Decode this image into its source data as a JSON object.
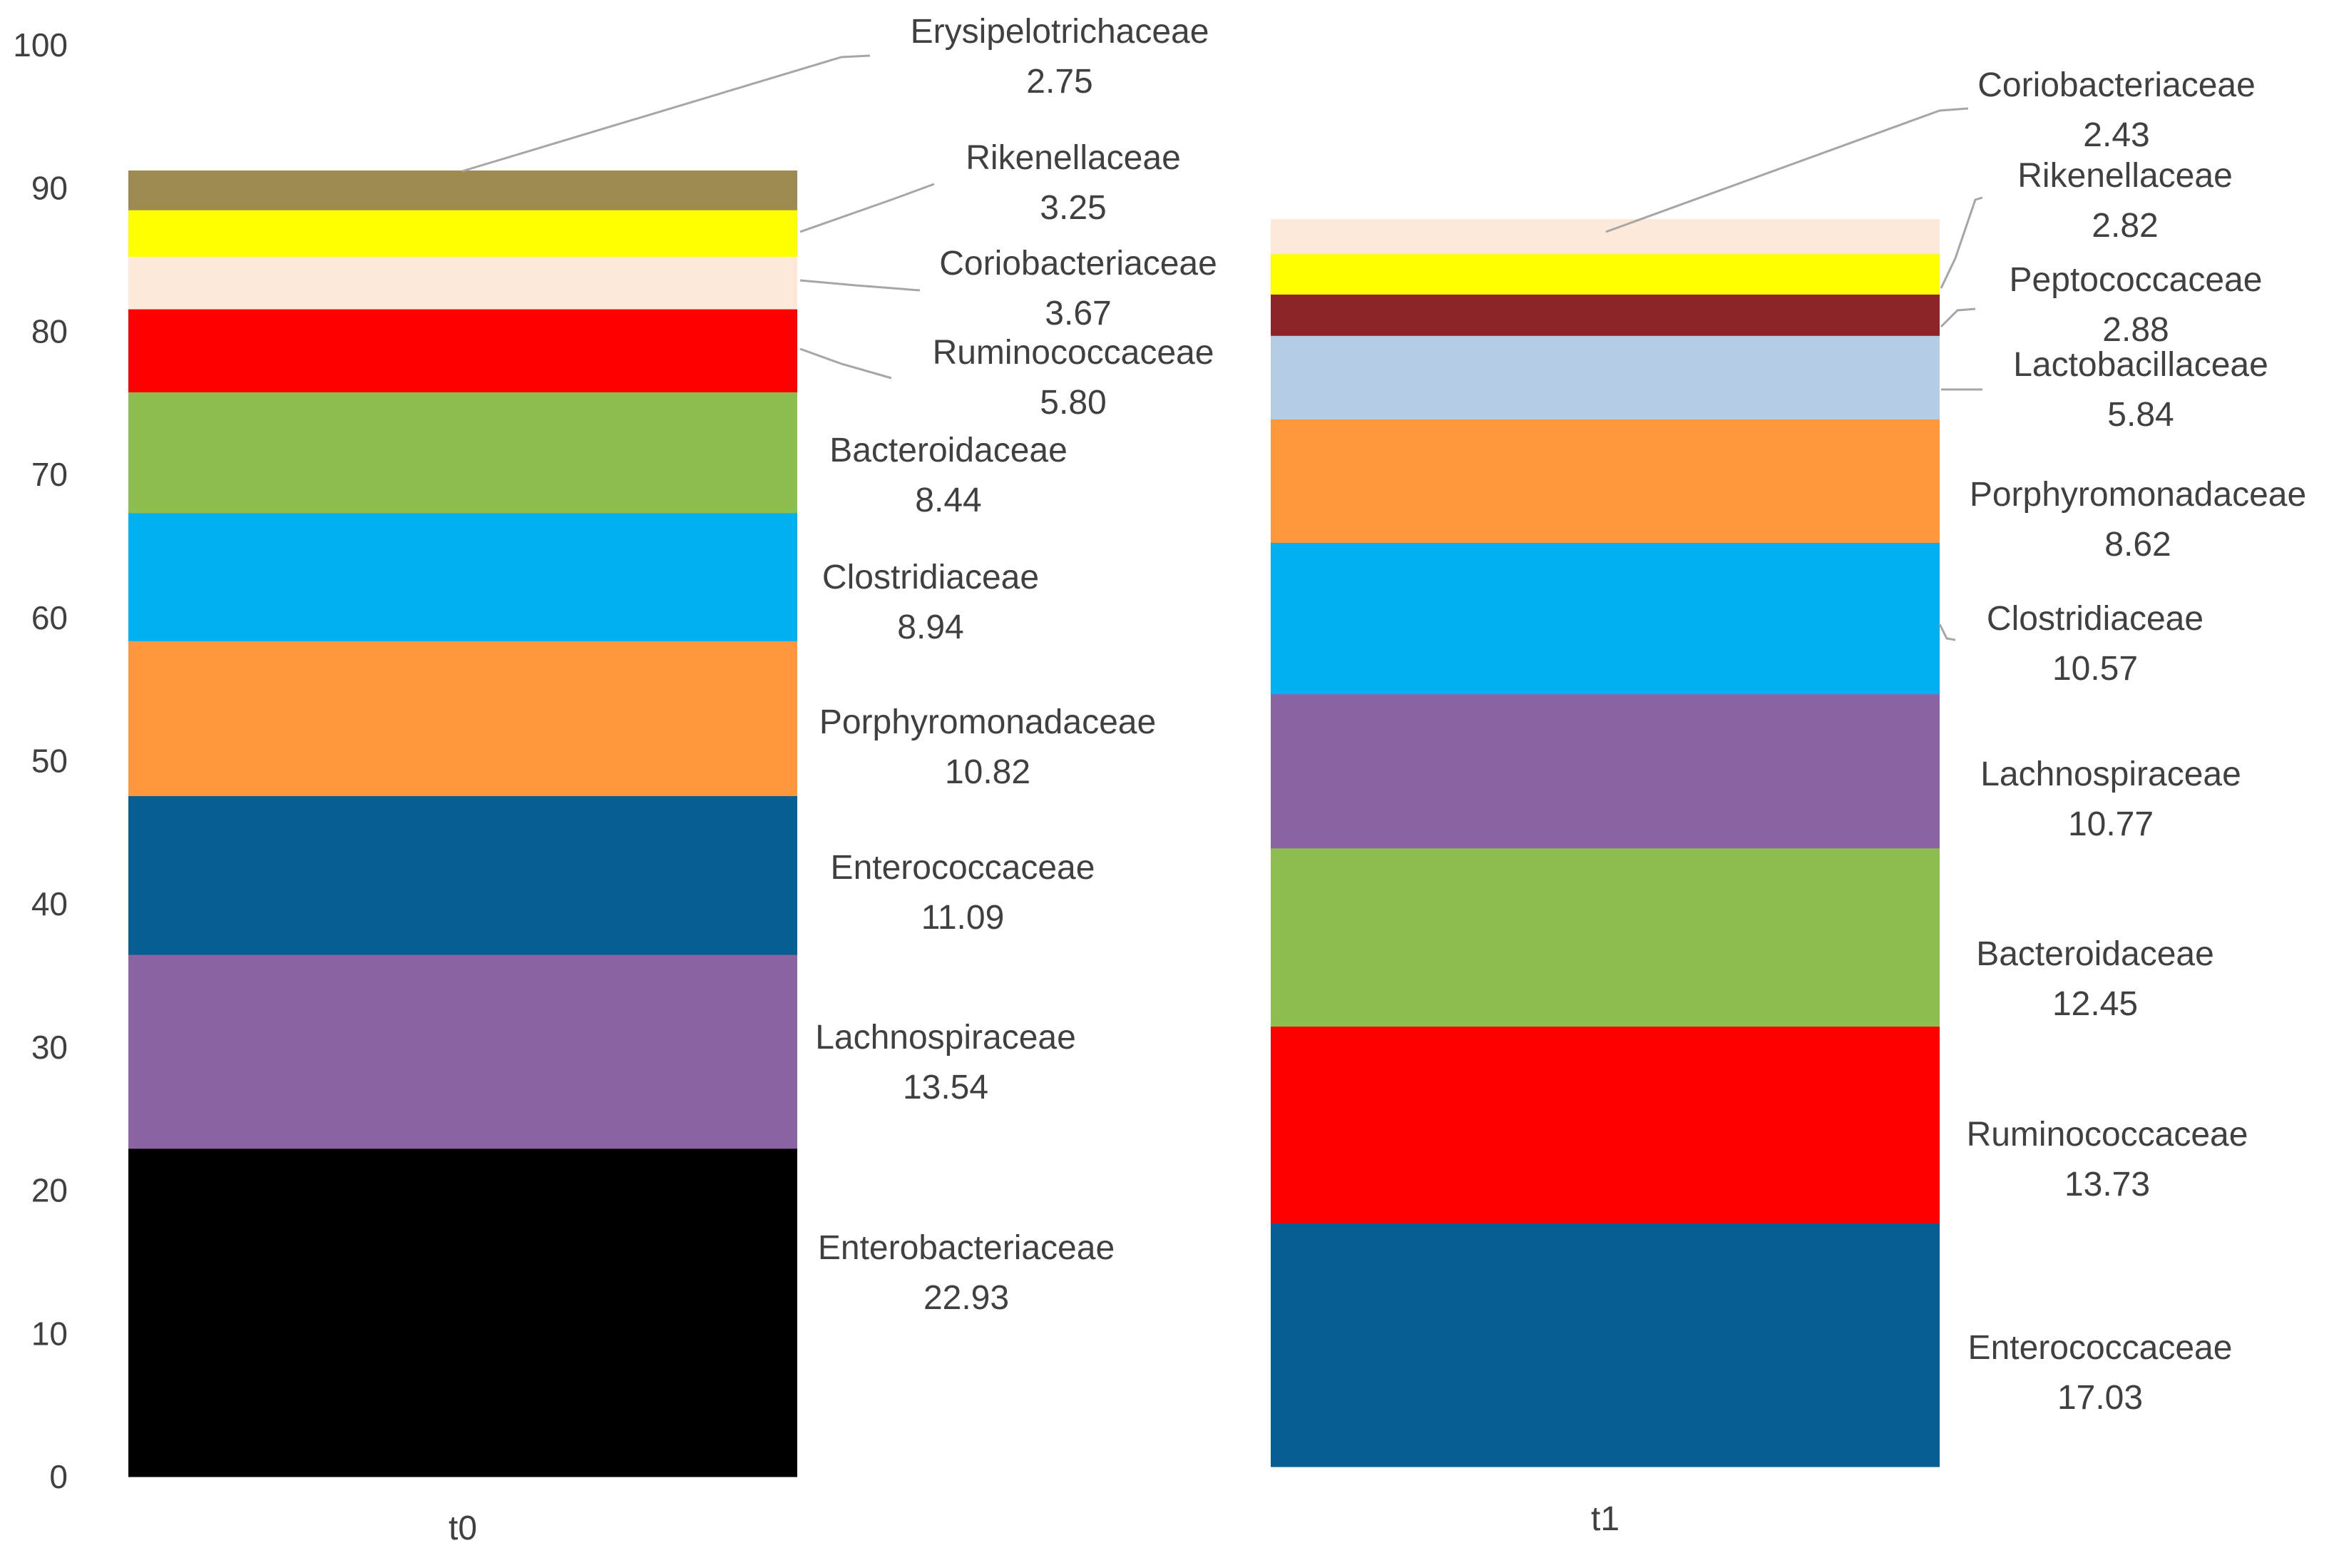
{
  "chart_data": [
    {
      "type": "stacked-bar",
      "category": "t0",
      "ylim": [
        0,
        100
      ],
      "yticks": [
        "0",
        "10",
        "20",
        "30",
        "40",
        "50",
        "60",
        "70",
        "80",
        "90",
        "100"
      ],
      "grid": false,
      "segments": [
        {
          "name": "Enterobacteriaceae",
          "value": 22.93,
          "label": "22.93",
          "color": "#000000"
        },
        {
          "name": "Lachnospiraceae",
          "value": 13.54,
          "label": "13.54",
          "color": "#8b64a4"
        },
        {
          "name": "Enterococcaceae",
          "value": 11.09,
          "label": "11.09",
          "color": "#075e93"
        },
        {
          "name": "Porphyromonadaceae",
          "value": 10.82,
          "label": "10.82",
          "color": "#ff983d"
        },
        {
          "name": "Clostridiaceae",
          "value": 8.94,
          "label": "8.94",
          "color": "#00b0f0"
        },
        {
          "name": "Bacteroidaceae",
          "value": 8.44,
          "label": "8.44",
          "color": "#8fbe50"
        },
        {
          "name": "Ruminococcaceae",
          "value": 5.8,
          "label": "5.80",
          "color": "#ff0000"
        },
        {
          "name": "Coriobacteriaceae",
          "value": 3.67,
          "label": "3.67",
          "color": "#fde9d9"
        },
        {
          "name": "Rikenellaceae",
          "value": 3.25,
          "label": "3.25",
          "color": "#ffff00"
        },
        {
          "name": "Erysipelotrichaceae",
          "value": 2.75,
          "label": "2.75",
          "color": "#9c8a50"
        }
      ]
    },
    {
      "type": "stacked-bar",
      "category": "t1",
      "ylim": [
        0,
        100
      ],
      "grid": false,
      "segments": [
        {
          "name": "Enterococcaceae",
          "value": 17.03,
          "label": "17.03",
          "color": "#075e93"
        },
        {
          "name": "Ruminococcaceae",
          "value": 13.73,
          "label": "13.73",
          "color": "#ff0000"
        },
        {
          "name": "Bacteroidaceae",
          "value": 12.45,
          "label": "12.45",
          "color": "#8fbe50"
        },
        {
          "name": "Lachnospiraceae",
          "value": 10.77,
          "label": "10.77",
          "color": "#8b64a4"
        },
        {
          "name": "Clostridiaceae",
          "value": 10.57,
          "label": "10.57",
          "color": "#00b0f0"
        },
        {
          "name": "Porphyromonadaceae",
          "value": 8.62,
          "label": "8.62",
          "color": "#ff983d"
        },
        {
          "name": "Lactobacillaceae",
          "value": 5.84,
          "label": "5.84",
          "color": "#b4cde4"
        },
        {
          "name": "Peptococcaceae",
          "value": 2.88,
          "label": "2.88",
          "color": "#8b2426"
        },
        {
          "name": "Rikenellaceae",
          "value": 2.82,
          "label": "2.82",
          "color": "#ffff00"
        },
        {
          "name": "Coriobacteriaceae",
          "value": 2.43,
          "label": "2.43",
          "color": "#fde9d9"
        }
      ]
    }
  ]
}
